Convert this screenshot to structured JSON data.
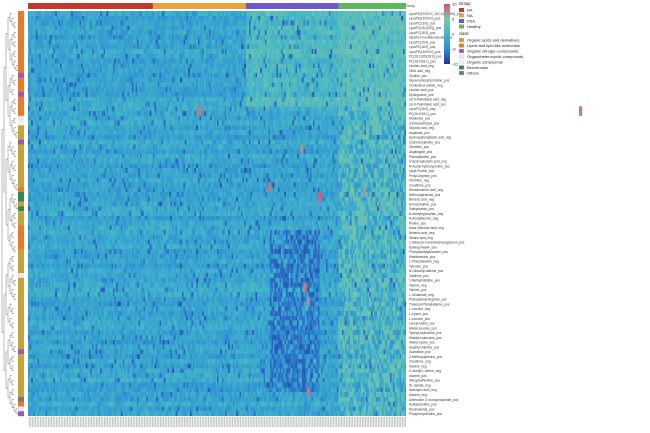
{
  "chart_data": {
    "type": "heatmap",
    "column_header_label": "Group",
    "group_legend": {
      "title": "Group",
      "entries": [
        {
          "label": "DA",
          "color": "#c0392b"
        },
        {
          "label": "NA",
          "color": "#e8a43a"
        },
        {
          "label": "PSA",
          "color": "#6a5acd"
        },
        {
          "label": "Healthy",
          "color": "#5cb85c"
        }
      ]
    },
    "class_legend": {
      "title": "class",
      "entries": [
        {
          "label": "Organic acids and derivatives",
          "color": "#c6a33a"
        },
        {
          "label": "Lipids and lipid-like molecules",
          "color": "#e87a2a"
        },
        {
          "label": "Organic nitrogen compounds",
          "color": "#9b59b6"
        },
        {
          "label": "Organoheterocyclic compounds",
          "color": "#e8e8e8"
        },
        {
          "label": "Organic compounds",
          "color": "#f2f2f2"
        },
        {
          "label": "Benzenoids",
          "color": "#2e8b57"
        },
        {
          "label": "Others",
          "color": "#777777"
        }
      ]
    },
    "color_scale": {
      "min": -10,
      "max": 10,
      "ticks": [
        10,
        5,
        0,
        -5,
        -10
      ],
      "colors": [
        "#2a2f9e",
        "#2c8ed6",
        "#43b6c8",
        "#7cc6a8",
        "#e84a6e"
      ]
    },
    "group_sizes": [
      {
        "group": "DA",
        "n": 78
      },
      {
        "group": "NA",
        "n": 58
      },
      {
        "group": "PSA",
        "n": 58
      },
      {
        "group": "Healthy",
        "n": 42
      }
    ],
    "rows": [
      {
        "label": "LysoPE(20:3/0:0_11Z,14Z)(18:0)_pos",
        "class": "Lipids and lipid-like molecules"
      },
      {
        "label": "LysoPE(18:0/0:0)_pos",
        "class": "Lipids and lipid-like molecules"
      },
      {
        "label": "LysoPC(16:0)_pos",
        "class": "Lipids and lipid-like molecules"
      },
      {
        "label": "LysoPC(18:1(9Z))_pos",
        "class": "Lipids and lipid-like molecules"
      },
      {
        "label": "LysoPC(18:2)_pos",
        "class": "Lipids and lipid-like molecules"
      },
      {
        "label": "Glycerol 3-octadecanoate_pos",
        "class": "Lipids and lipid-like molecules"
      },
      {
        "label": "LysoPC(20:4)_pos",
        "class": "Lipids and lipid-like molecules"
      },
      {
        "label": "LysoPC(18:0)_pos",
        "class": "Lipids and lipid-like molecules"
      },
      {
        "label": "LysoPE(18:0/0:0)_pos",
        "class": "Lipids and lipid-like molecules"
      },
      {
        "label": "PC(18:1(9Z)/18:0)_pos",
        "class": "Lipids and lipid-like molecules"
      },
      {
        "label": "PC(18:0/18:1)_pos",
        "class": "Lipids and lipid-like molecules"
      },
      {
        "label": "Linoleic acid_neg",
        "class": "Lipids and lipid-like molecules"
      },
      {
        "label": "Oleic acid_neg",
        "class": "Lipids and lipid-like molecules"
      },
      {
        "label": "Choline_pos",
        "class": "Organic nitrogen compounds"
      },
      {
        "label": "Glycerophosphocholine_pos",
        "class": "Lipids and lipid-like molecules"
      },
      {
        "label": "Cholesterol sulfate_neg",
        "class": "Lipids and lipid-like molecules"
      },
      {
        "label": "Linoleic acid_pos",
        "class": "Lipids and lipid-like molecules"
      },
      {
        "label": "Sphingosine_pos",
        "class": "Organic nitrogen compounds"
      },
      {
        "label": "cis-9-Palmitoleic acid_neg",
        "class": "Lipids and lipid-like molecules"
      },
      {
        "label": "cis-9-Palmitoleic acid_pos",
        "class": "Lipids and lipid-like molecules"
      },
      {
        "label": "LysoPC(16:0)_neg",
        "class": "Lipids and lipid-like molecules"
      },
      {
        "label": "PC(16:0/18:1)_pos",
        "class": "Lipids and lipid-like molecules"
      },
      {
        "label": "Histamine_pos",
        "class": "Organoheterocyclic compounds"
      },
      {
        "label": "3-Ethoxyethanol_pos",
        "class": "Organic compounds"
      },
      {
        "label": "Glycolic acid_neg",
        "class": "Organic acids and derivatives"
      },
      {
        "label": "Aspartate_pos",
        "class": "Organic acids and derivatives"
      },
      {
        "label": "Hydroxyphenyllactic acid_neg",
        "class": "Organic acids and derivatives"
      },
      {
        "label": "Cyclohexylamine_pos",
        "class": "Organic nitrogen compounds"
      },
      {
        "label": "Ornithine_pos",
        "class": "Organic acids and derivatives"
      },
      {
        "label": "Asparagine_pos",
        "class": "Organic acids and derivatives"
      },
      {
        "label": "Phenylalanine_pos",
        "class": "Organic acids and derivatives"
      },
      {
        "label": "3-Hydroxybutyric acid_neg",
        "class": "Organic acids and derivatives"
      },
      {
        "label": "N-Acetyl-hydroxyproline_pos",
        "class": "Organic acids and derivatives"
      },
      {
        "label": "Lysyl-Proline_pos",
        "class": "Organic acids and derivatives"
      },
      {
        "label": "Prolyl-Arginine_pos",
        "class": "Organic acids and derivatives"
      },
      {
        "label": "Ornithine_neg",
        "class": "Organic acids and derivatives"
      },
      {
        "label": "Creatinine_pos",
        "class": "Organic acids and derivatives"
      },
      {
        "label": "Hexadecanoic acid_neg",
        "class": "Lipids and lipid-like molecules"
      },
      {
        "label": "Methoxytyramine_pos",
        "class": "Benzenoids"
      },
      {
        "label": "Benzoic acid_neg",
        "class": "Benzenoids"
      },
      {
        "label": "Homocitrulline_pos",
        "class": "Organic acids and derivatives"
      },
      {
        "label": "Salicylamide_pos",
        "class": "Benzenoids"
      },
      {
        "label": "N-Acetyltryptophan_neg",
        "class": "Organic acids and derivatives"
      },
      {
        "label": "N-Acetylleucine_neg",
        "class": "Organic acids and derivatives"
      },
      {
        "label": "Proline_pos",
        "class": "Organic acids and derivatives"
      },
      {
        "label": "trans-Vaccenic acid_neg",
        "class": "Lipids and lipid-like molecules"
      },
      {
        "label": "Behenic acid_neg",
        "class": "Lipids and lipid-like molecules"
      },
      {
        "label": "Stearic acid_neg",
        "class": "Lipids and lipid-like molecules"
      },
      {
        "label": "1-Stearoyl-2-arachidonoyl-glycerol_pos",
        "class": "Lipids and lipid-like molecules"
      },
      {
        "label": "Sphingomyelin_pos",
        "class": "Lipids and lipid-like molecules"
      },
      {
        "label": "Phenylacetylglutamine_pos",
        "class": "Organic acids and derivatives"
      },
      {
        "label": "Histidinamide_pos",
        "class": "Organic acids and derivatives"
      },
      {
        "label": "L-Phenylalanine_neg",
        "class": "Organic acids and derivatives"
      },
      {
        "label": "Tyrosine_pos",
        "class": "Organic acids and derivatives"
      },
      {
        "label": "N-Glutamyl-alanine_pos",
        "class": "Organic acids and derivatives"
      },
      {
        "label": "Xanthine_pos",
        "class": "Organoheterocyclic compounds"
      },
      {
        "label": "1-Methylhistidine_pos",
        "class": "Organic acids and derivatives"
      },
      {
        "label": "Taurine_neg",
        "class": "Organic acids and derivatives"
      },
      {
        "label": "Taurine_pos",
        "class": "Organic acids and derivatives"
      },
      {
        "label": "L-Glutamate_neg",
        "class": "Organic acids and derivatives"
      },
      {
        "label": "Phenylalanyl-Arginine_pos",
        "class": "Organic acids and derivatives"
      },
      {
        "label": "Threonyl-Phenylalanine_pos",
        "class": "Organic acids and derivatives"
      },
      {
        "label": "L-Leucine_neg",
        "class": "Organic acids and derivatives"
      },
      {
        "label": "L-Lysine_pos",
        "class": "Organic acids and derivatives"
      },
      {
        "label": "L-Leucine_pos",
        "class": "Organic acids and derivatives"
      },
      {
        "label": "Leucyl-Valine_pos",
        "class": "Organic acids and derivatives"
      },
      {
        "label": "Alanyl-Leucine_pos",
        "class": "Organic acids and derivatives"
      },
      {
        "label": "Tyrosyl-Isoleucine_pos",
        "class": "Organic acids and derivatives"
      },
      {
        "label": "Histidyl-Isoleucine_pos",
        "class": "Organic acids and derivatives"
      },
      {
        "label": "Alanyl-Lysine_pos",
        "class": "Organic acids and derivatives"
      },
      {
        "label": "Aspartyl-Alanine_pos",
        "class": "Organic acids and derivatives"
      },
      {
        "label": "Guanidine_pos",
        "class": "Organic nitrogen compounds"
      },
      {
        "label": "3-Methoxytyrosine_pos",
        "class": "Organic acids and derivatives"
      },
      {
        "label": "Creatinine_neg",
        "class": "Organic acids and derivatives"
      },
      {
        "label": "Alanine_neg",
        "class": "Organic acids and derivatives"
      },
      {
        "label": "O-Acetyl-L-serine_neg",
        "class": "Organic acids and derivatives"
      },
      {
        "label": "Alanine_pos",
        "class": "Organic acids and derivatives"
      },
      {
        "label": "Allocystathionine_pos",
        "class": "Organic acids and derivatives"
      },
      {
        "label": "DL-lactate_neg",
        "class": "Organic acids and derivatives"
      },
      {
        "label": "Isobutyric acid_neg",
        "class": "Organic acids and derivatives"
      },
      {
        "label": "Alanine_neg",
        "class": "Organic acids and derivatives"
      },
      {
        "label": "Adenosine 3'-monophosphate_pos",
        "class": "Others"
      },
      {
        "label": "Acetylcarnitine_pos",
        "class": "Lipids and lipid-like molecules"
      },
      {
        "label": "Nicotinamide_pos",
        "class": "Organoheterocyclic compounds"
      },
      {
        "label": "Phosphorylcholine_pos",
        "class": "Organic nitrogen compounds"
      }
    ],
    "hot_cells": [
      {
        "row": 20,
        "col": 106,
        "value": 8
      },
      {
        "row": 20,
        "col": 344,
        "value": 8
      },
      {
        "row": 28,
        "col": 170,
        "value": 7
      },
      {
        "row": 36,
        "col": 150,
        "value": 8
      },
      {
        "row": 37,
        "col": 209,
        "value": 7
      },
      {
        "row": 38,
        "col": 181,
        "value": 9
      },
      {
        "row": 57,
        "col": 172,
        "value": 8
      },
      {
        "row": 60,
        "col": 174,
        "value": 7
      },
      {
        "row": 79,
        "col": 174,
        "value": 8
      }
    ]
  }
}
